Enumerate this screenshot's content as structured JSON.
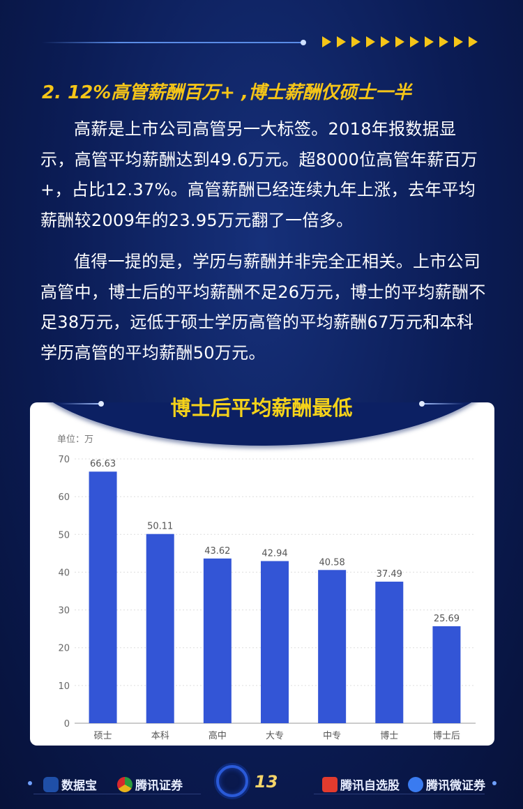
{
  "section_title": "2. 12%高管薪酬百万+ ,博士薪酬仅硕士一半",
  "paragraphs": [
    "高薪是上市公司高管另一大标签。2018年报数据显示，高管平均薪酬达到49.6万元。超8000位高管年薪百万+，占比12.37%。高管薪酬已经连续九年上涨，去年平均薪酬较2009年的23.95万元翻了一倍多。",
    "值得一提的是，学历与薪酬并非完全正相关。上市公司高管中，博士后的平均薪酬不足26万元，博士的平均薪酬不足38万元，远低于硕士学历高管的平均薪酬67万元和本科学历高管的平均薪酬50万元。"
  ],
  "chart_data": {
    "type": "bar",
    "title": "博士后平均薪酬最低",
    "unit_label": "单位：万",
    "categories": [
      "硕士",
      "本科",
      "高中",
      "大专",
      "中专",
      "博士",
      "博士后"
    ],
    "values": [
      66.63,
      50.11,
      43.62,
      42.94,
      40.58,
      37.49,
      25.69
    ],
    "ylim": [
      0,
      70
    ],
    "yticks": [
      0,
      10,
      20,
      30,
      40,
      50,
      60,
      70
    ],
    "grid": true,
    "bar_color": "#3355d6"
  },
  "footer": {
    "left": [
      "数据宝",
      "腾讯证券"
    ],
    "page_number": "13",
    "right": [
      "腾讯自选股",
      "腾讯微证券"
    ]
  },
  "colors": {
    "accent": "#f5c518",
    "background": "#0b1c55"
  }
}
